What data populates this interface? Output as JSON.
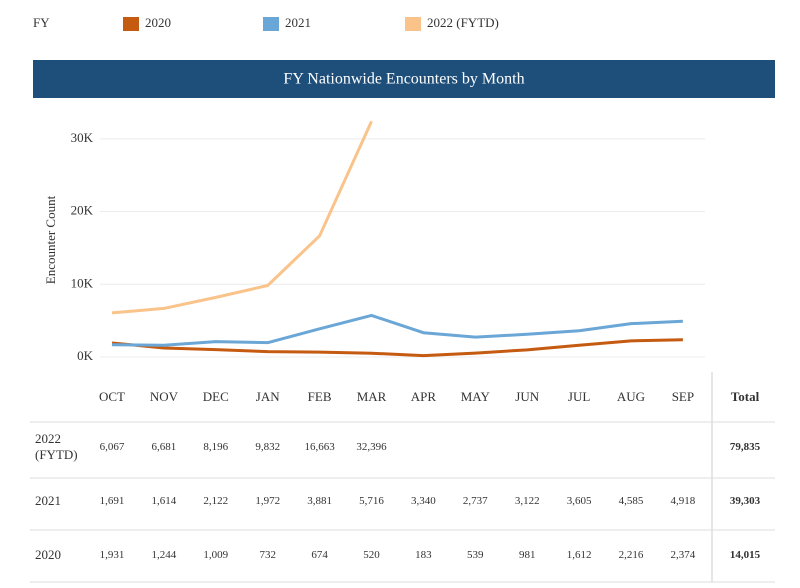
{
  "chart_data": {
    "type": "line",
    "title": "FY Nationwide Encounters by Month",
    "legend_title": "FY",
    "y_label": "Encounter Count",
    "categories": [
      "OCT",
      "NOV",
      "DEC",
      "JAN",
      "FEB",
      "MAR",
      "APR",
      "MAY",
      "JUN",
      "JUL",
      "AUG",
      "SEP"
    ],
    "series": [
      {
        "name": "2020",
        "color": "#c55a11",
        "values": [
          1931,
          1244,
          1009,
          732,
          674,
          520,
          183,
          539,
          981,
          1612,
          2216,
          2374
        ],
        "value_labels": [
          "1,931",
          "1,244",
          "1,009",
          "732",
          "674",
          "520",
          "183",
          "539",
          "981",
          "1,612",
          "2,216",
          "2,374"
        ],
        "total": "14,015"
      },
      {
        "name": "2021",
        "color": "#6aa6d6",
        "values": [
          1691,
          1614,
          2122,
          1972,
          3881,
          5716,
          3340,
          2737,
          3122,
          3605,
          4585,
          4918
        ],
        "value_labels": [
          "1,691",
          "1,614",
          "2,122",
          "1,972",
          "3,881",
          "5,716",
          "3,340",
          "2,737",
          "3,122",
          "3,605",
          "4,585",
          "4,918"
        ],
        "total": "39,303"
      },
      {
        "name": "2022 (FYTD)",
        "color": "#f9c38a",
        "values": [
          6067,
          6681,
          8196,
          9832,
          16663,
          32396,
          null,
          null,
          null,
          null,
          null,
          null
        ],
        "value_labels": [
          "6,067",
          "6,681",
          "8,196",
          "9,832",
          "16,663",
          "32,396",
          null,
          null,
          null,
          null,
          null,
          null
        ],
        "total": "79,835"
      }
    ],
    "total_header": "Total",
    "ylim": [
      0,
      33000
    ],
    "yticks": [
      {
        "value": 0,
        "label": "0K"
      },
      {
        "value": 10000,
        "label": "10K"
      },
      {
        "value": 20000,
        "label": "20K"
      },
      {
        "value": 30000,
        "label": "30K"
      }
    ],
    "grid": true
  }
}
